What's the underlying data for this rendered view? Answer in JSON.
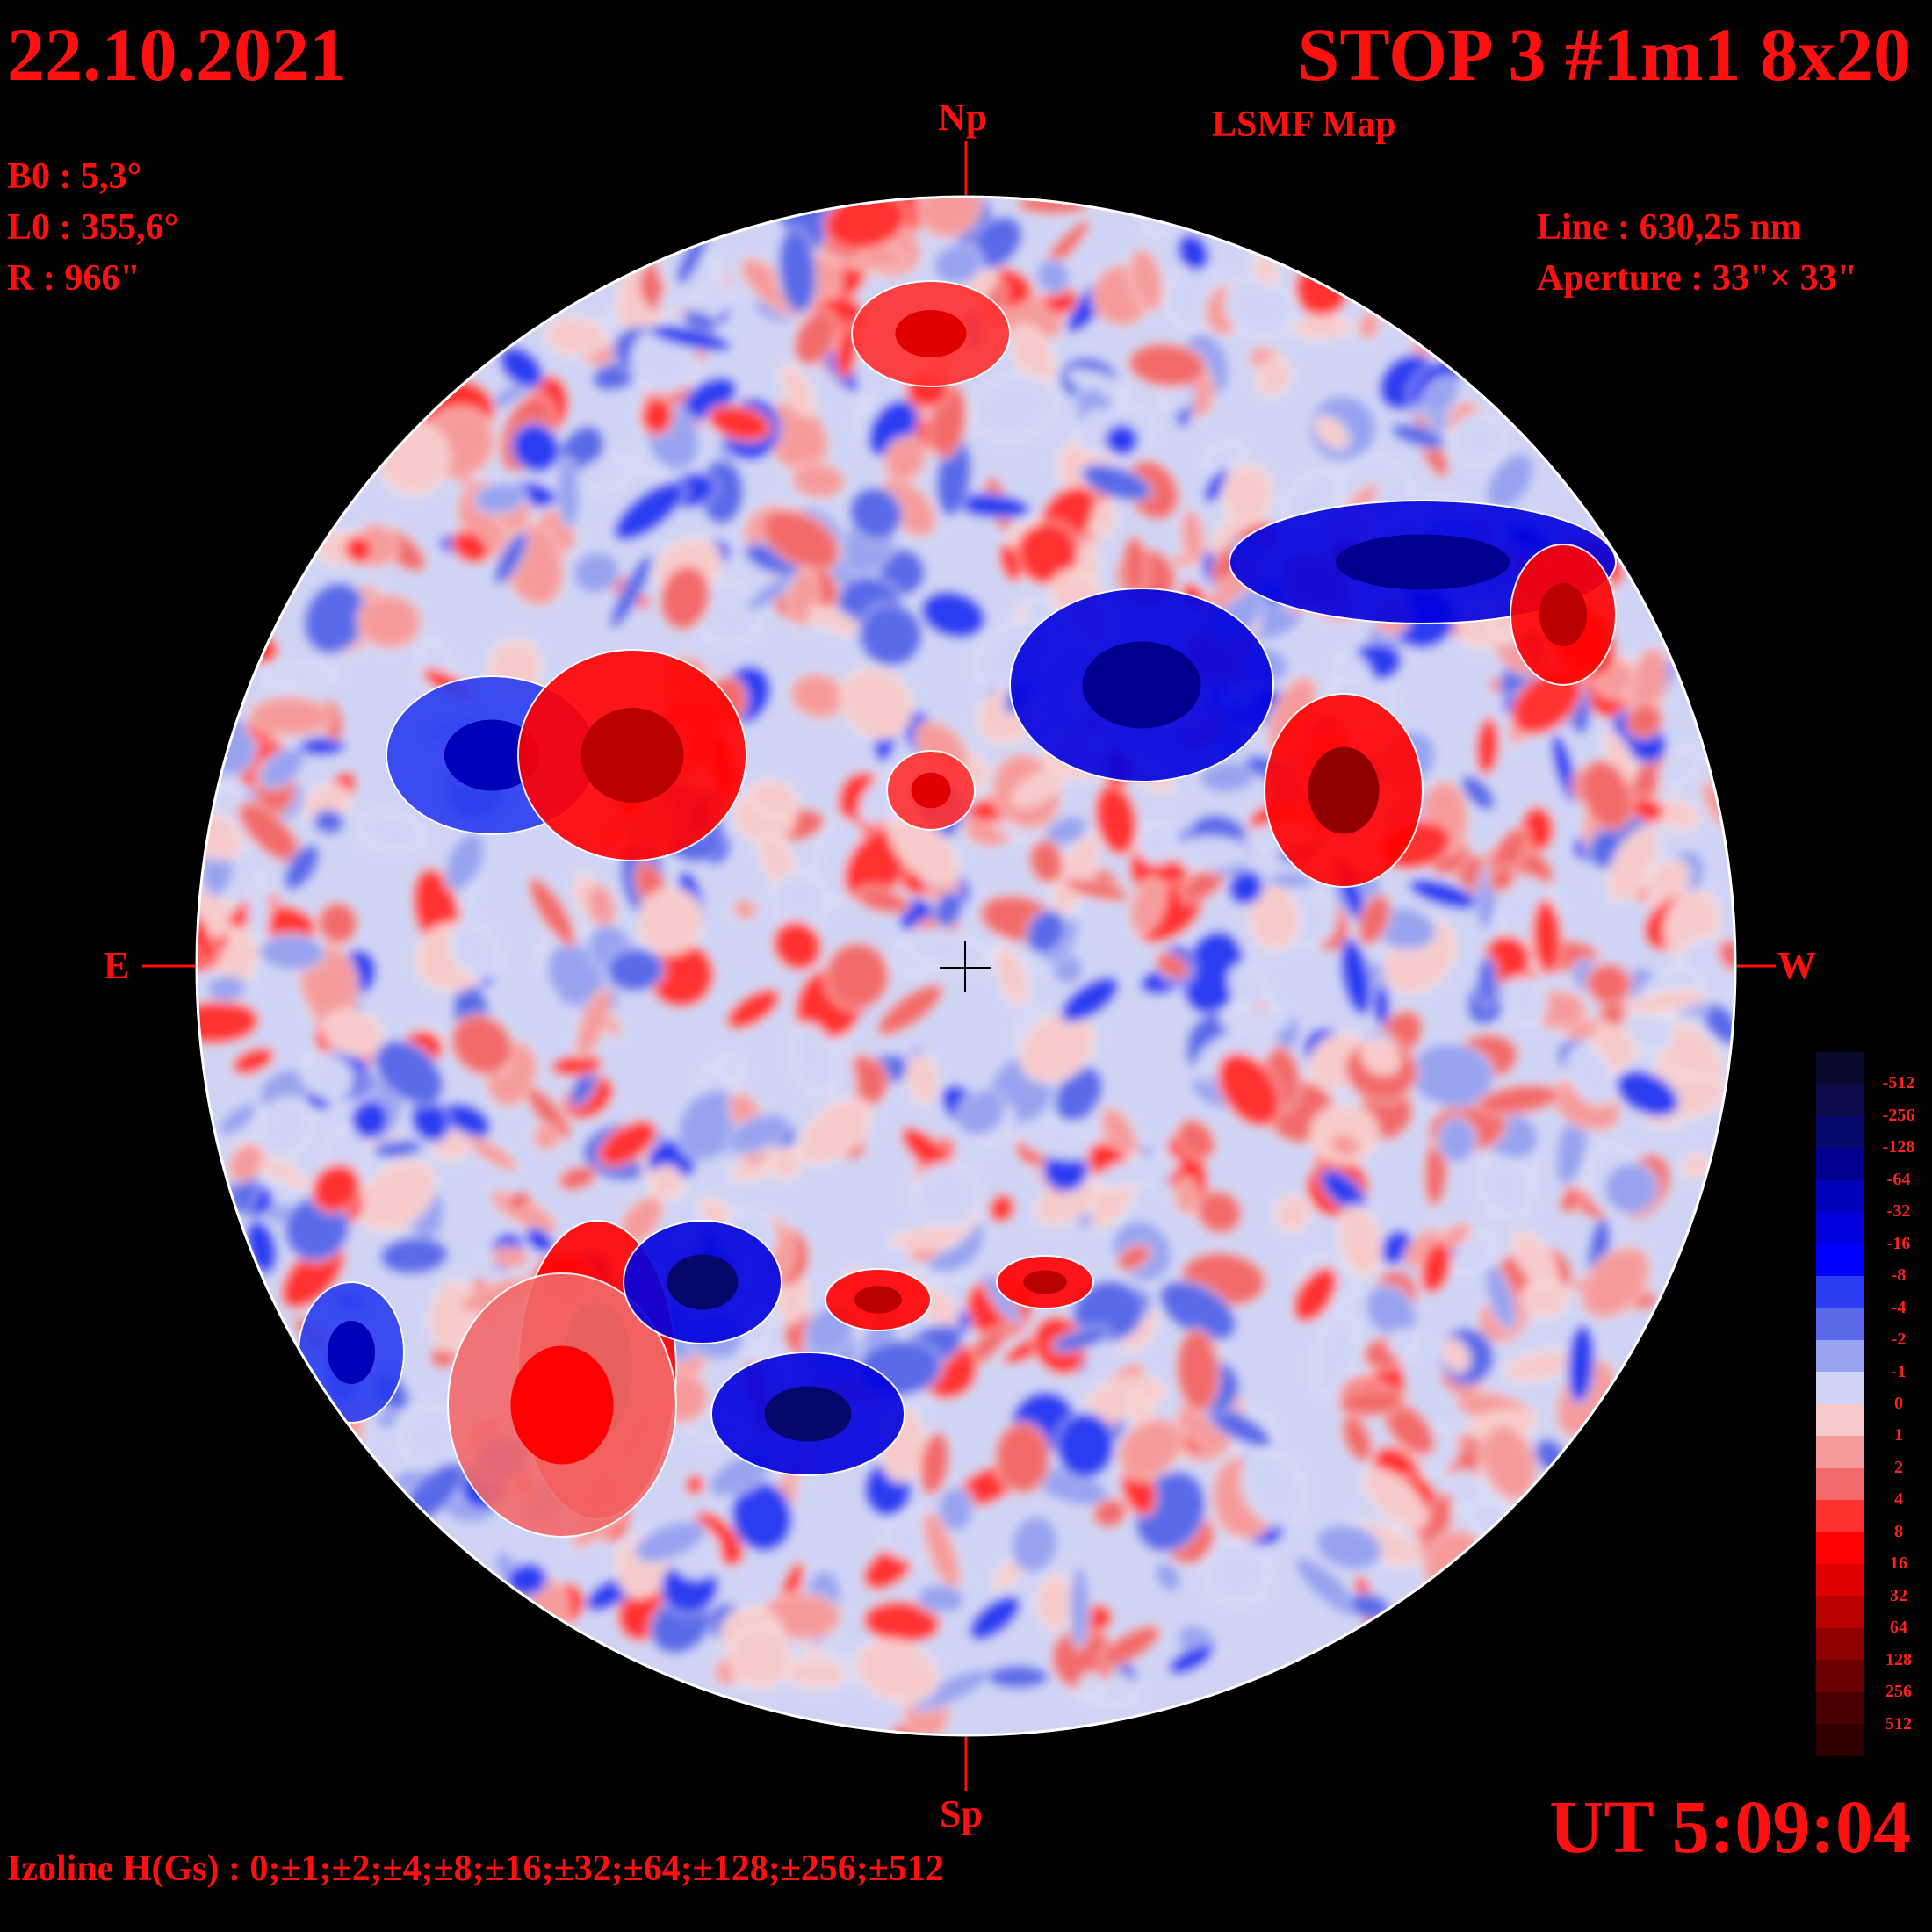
{
  "header": {
    "date": "22.10.2021",
    "title": "STOP 3 #1m1 8x20",
    "subtitle": "LSMF  Map"
  },
  "solar_params": {
    "b0": "B0 : 5,3°",
    "l0": "L0 : 355,6°",
    "r": "R  : 966\""
  },
  "observation": {
    "line": "Line :  630,25 nm",
    "aperture": "Aperture : 33\"× 33\""
  },
  "directions": {
    "north": "Np",
    "south": "Sp",
    "east": "E",
    "west": "W"
  },
  "time": "UT 5:09:04",
  "izoline": "Izoline H(Gs) : 0;±1;±2;±4;±8;±16;±32;±64;±128;±256;±512",
  "colorbar": {
    "labels": [
      "-512",
      "-256",
      "-128",
      "-64",
      "-32",
      "-16",
      "-8",
      "-4",
      "-2",
      "-1",
      "0",
      "1",
      "2",
      "4",
      "8",
      "16",
      "32",
      "64",
      "128",
      "256",
      "512"
    ],
    "colors": [
      "#0a0a2e",
      "#0b0b4a",
      "#06066b",
      "#00008e",
      "#0000b8",
      "#0000dd",
      "#0000ff",
      "#2a3cf0",
      "#5a6ae8",
      "#98a3ef",
      "#cfd4f5",
      "#f6caca",
      "#f59b9b",
      "#f26a6a",
      "#ff3030",
      "#ff0000",
      "#e00000",
      "#b80000",
      "#900000",
      "#6c0000",
      "#4a0000",
      "#300000"
    ]
  },
  "disk": {
    "positive_color": "#ff0000",
    "negative_color": "#0000ff",
    "neutral_light_red": "#f6caca",
    "neutral_light_blue": "#cfd4f5",
    "isoline_color": "#ffffff"
  }
}
